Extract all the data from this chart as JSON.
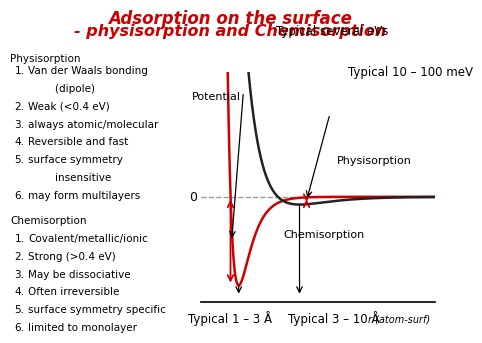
{
  "title_line1": "Adsorption on the surface",
  "title_line2": "- physisorption and Chemisorption",
  "title_color": "#cc0000",
  "title_fontsize": 12,
  "background_color": "#ffffff",
  "physi_header": "Physisorption",
  "physi_items": [
    "Van der Waals bonding",
    "    (dipole)",
    "Weak (<0.4 eV)",
    "always atomic/molecular",
    "Reversible and fast",
    "surface symmetry",
    "    insensitive",
    "may form multilayers"
  ],
  "physi_numbering": [
    1,
    0,
    2,
    3,
    4,
    5,
    0,
    6
  ],
  "chemi_header": "Chemisorption",
  "chemi_items": [
    "Covalent/metallic/ionic",
    "Strong (>0.4 eV)",
    "May be dissociative",
    "Often irreversible",
    "surface symmetry specific",
    "limited to monolayer"
  ],
  "ann_typical_sev_eVs": "Typical several eVs",
  "ann_typical_10_100": "Typical 10 – 100 meV",
  "ann_physisorption": "Physisorption",
  "ann_chemisorption": "Chemisorption",
  "ann_typical_1_3": "Typical 1 – 3 Å",
  "ann_typical_3_10": "Typical 3 – 10 Å",
  "ann_potential": "Potential",
  "ann_r": "r (atom-surf)",
  "chemi_color": "#cc0000",
  "physi_color": "#222222",
  "zero_line_color": "#999999",
  "arrow_color": "#000000",
  "text_fontsize": 7.5,
  "ann_fontsize": 8.5
}
